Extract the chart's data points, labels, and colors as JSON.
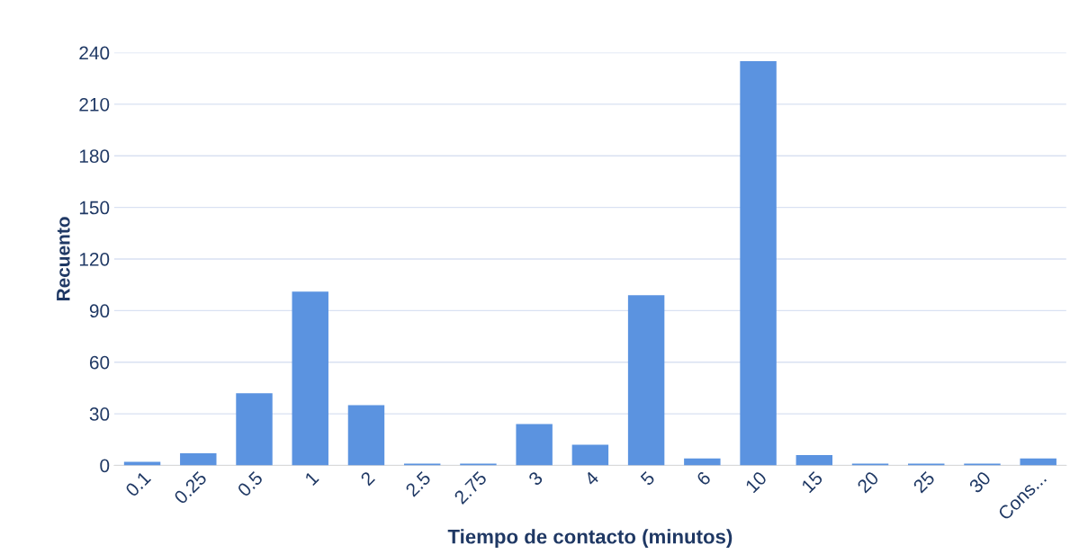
{
  "chart_data": {
    "type": "bar",
    "xlabel": "Tiempo de contacto (minutos)",
    "ylabel": "Recuento",
    "categories": [
      "0.1",
      "0.25",
      "0.5",
      "1",
      "2",
      "2.5",
      "2.75",
      "3",
      "4",
      "5",
      "6",
      "10",
      "15",
      "20",
      "25",
      "30",
      "Cons..."
    ],
    "values": [
      2,
      7,
      42,
      101,
      35,
      1,
      1,
      24,
      12,
      99,
      4,
      235,
      6,
      1,
      1,
      1,
      4
    ],
    "color": "#5b93e0",
    "ylim": [
      0,
      240
    ],
    "yticks": [
      0,
      30,
      60,
      90,
      120,
      150,
      180,
      210,
      240
    ],
    "grid": "y",
    "legend": false
  }
}
